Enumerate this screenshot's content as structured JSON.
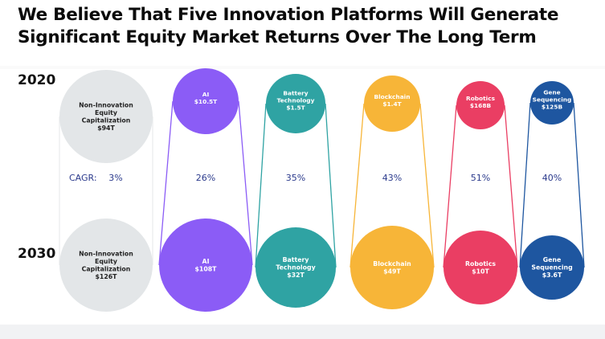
{
  "title": {
    "line1": "We Believe That Five Innovation Platforms Will Generate",
    "line2": "Significant Equity Market Returns Over The Long Term"
  },
  "years": {
    "start": "2020",
    "end": "2030"
  },
  "cagr_label": "CAGR:",
  "colors": {
    "non_innovation": "#e3e6e8",
    "ai": "#8b5cf6",
    "battery": "#2fa3a3",
    "blockchain": "#f7b538",
    "robotics": "#ea3e63",
    "gene": "#1e56a0",
    "text_dark": "#222222",
    "text_white": "#ffffff",
    "cagr_text": "#2b3a8c"
  },
  "chart_data": {
    "type": "bubble-comparison",
    "title": "We Believe That Five Innovation Platforms Will Generate Significant Equity Market Returns Over The Long Term",
    "series_years": [
      "2020",
      "2030"
    ],
    "unit": "USD market capitalization",
    "categories": [
      {
        "key": "non_innovation",
        "name_lines": [
          "Non-Innovation",
          "Equity",
          "Capitalization"
        ],
        "value_2020": 94,
        "value_2020_label": "$94T",
        "value_2030": 126,
        "value_2030_label": "$126T",
        "cagr": 3,
        "cagr_label": "3%"
      },
      {
        "key": "ai",
        "name_lines": [
          "AI"
        ],
        "value_2020": 10.5,
        "value_2020_label": "$10.5T",
        "value_2030": 108,
        "value_2030_label": "$108T",
        "cagr": 26,
        "cagr_label": "26%"
      },
      {
        "key": "battery",
        "name_lines": [
          "Battery",
          "Technology"
        ],
        "value_2020": 1.5,
        "value_2020_label": "$1.5T",
        "value_2030": 32,
        "value_2030_label": "$32T",
        "cagr": 35,
        "cagr_label": "35%"
      },
      {
        "key": "blockchain",
        "name_lines": [
          "Blockchain"
        ],
        "value_2020": 1.4,
        "value_2020_label": "$1.4T",
        "value_2030": 49,
        "value_2030_label": "$49T",
        "cagr": 43,
        "cagr_label": "43%"
      },
      {
        "key": "robotics",
        "name_lines": [
          "Robotics"
        ],
        "value_2020": 0.168,
        "value_2020_label": "$168B",
        "value_2030": 10,
        "value_2030_label": "$10T",
        "cagr": 51,
        "cagr_label": "51%"
      },
      {
        "key": "gene",
        "name_lines": [
          "Gene",
          "Sequencing"
        ],
        "value_2020": 0.125,
        "value_2020_label": "$125B",
        "value_2030": 3.6,
        "value_2030_label": "$3.6T",
        "cagr": 40,
        "cagr_label": "40%"
      }
    ]
  }
}
